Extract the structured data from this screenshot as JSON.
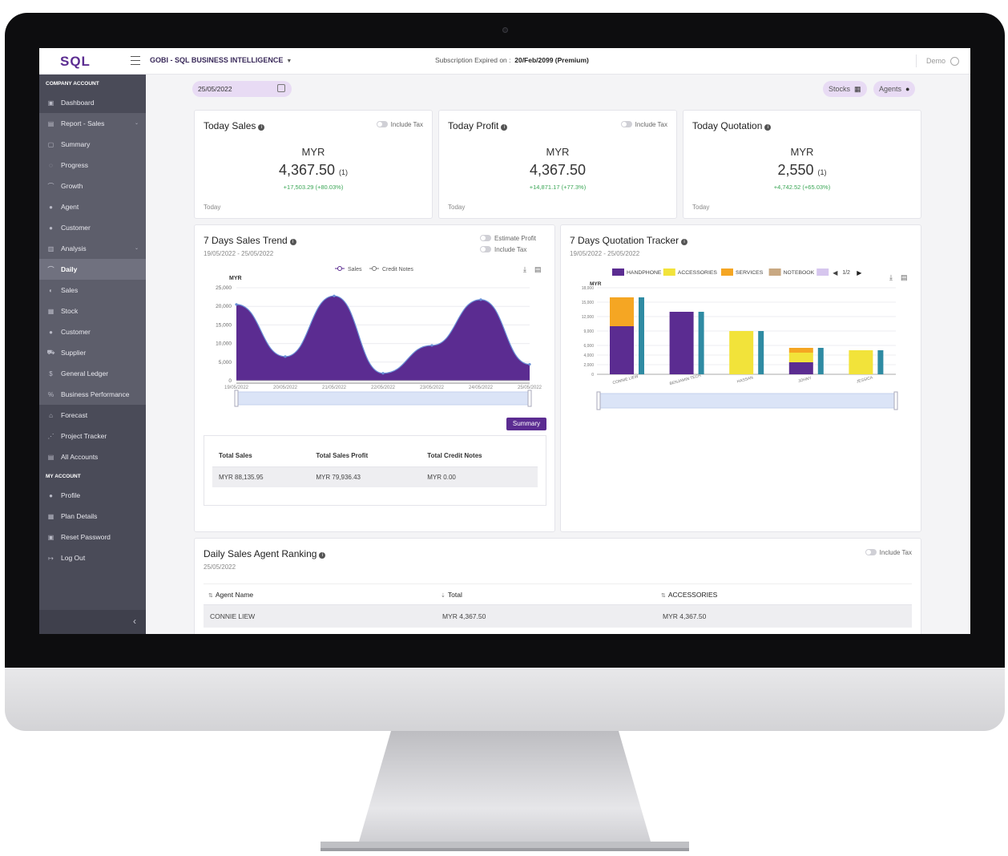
{
  "header": {
    "logo": "SQL",
    "app_name": "GOBI - SQL BUSINESS INTELLIGENCE",
    "subscription_label": "Subscription Expired on :",
    "subscription_value": "20/Feb/2099 (Premium)",
    "user": "Demo"
  },
  "sidebar": {
    "company_section": "COMPANY ACCOUNT",
    "company_items": [
      {
        "label": "Dashboard",
        "icon": "dashboard-icon"
      },
      {
        "label": "Report - Sales",
        "icon": "report-icon"
      },
      {
        "label": "Summary",
        "icon": "summary-icon"
      },
      {
        "label": "Progress",
        "icon": "progress-icon"
      },
      {
        "label": "Growth",
        "icon": "growth-icon"
      },
      {
        "label": "Agent",
        "icon": "agent-icon"
      },
      {
        "label": "Customer",
        "icon": "customer-icon"
      },
      {
        "label": "Analysis",
        "icon": "analysis-icon"
      },
      {
        "label": "Daily",
        "icon": "daily-icon"
      },
      {
        "label": "Sales",
        "icon": "sales-icon"
      },
      {
        "label": "Stock",
        "icon": "stock-icon"
      },
      {
        "label": "Customer",
        "icon": "customer-icon"
      },
      {
        "label": "Supplier",
        "icon": "supplier-icon"
      },
      {
        "label": "General Ledger",
        "icon": "ledger-icon"
      },
      {
        "label": "Business Performance",
        "icon": "performance-icon"
      },
      {
        "label": "Forecast",
        "icon": "forecast-icon"
      },
      {
        "label": "Project Tracker",
        "icon": "project-icon"
      },
      {
        "label": "All Accounts",
        "icon": "accounts-icon"
      }
    ],
    "my_section": "MY ACCOUNT",
    "my_items": [
      {
        "label": "Profile",
        "icon": "profile-icon"
      },
      {
        "label": "Plan Details",
        "icon": "plan-icon"
      },
      {
        "label": "Reset Password",
        "icon": "lock-icon"
      },
      {
        "label": "Log Out",
        "icon": "logout-icon"
      }
    ],
    "collapse": "‹"
  },
  "toolbar": {
    "date": "25/05/2022",
    "stocks": "Stocks",
    "agents": "Agents"
  },
  "kpis": [
    {
      "title": "Today Sales",
      "toggle": "Include Tax",
      "currency": "MYR",
      "value": "4,367.50",
      "count": "(1)",
      "delta": "+17,503.29 (+80.03%)",
      "foot": "Today"
    },
    {
      "title": "Today Profit",
      "toggle": "Include Tax",
      "currency": "MYR",
      "value": "4,367.50",
      "count": "",
      "delta": "+14,871.17 (+77.3%)",
      "foot": "Today"
    },
    {
      "title": "Today Quotation",
      "toggle": "",
      "currency": "MYR",
      "value": "2,550",
      "count": "(1)",
      "delta": "+4,742.52 (+65.03%)",
      "foot": "Today"
    }
  ],
  "sales_trend": {
    "title": "7 Days Sales Trend",
    "range": "19/05/2022 - 25/05/2022",
    "toggle1": "Estimate Profit",
    "toggle2": "Include Tax",
    "summary_button": "Summary",
    "summary_headers": [
      "Total Sales",
      "Total Sales Profit",
      "Total Credit Notes"
    ],
    "summary_values": [
      "MYR 88,135.95",
      "MYR 79,936.43",
      "MYR 0.00"
    ]
  },
  "quotation_tracker": {
    "title": "7 Days Quotation Tracker",
    "range": "19/05/2022 - 25/05/2022",
    "pager": "1/2"
  },
  "chart_data": [
    {
      "type": "area",
      "ylabel": "MYR",
      "categories": [
        "19/05/2022",
        "20/05/2022",
        "21/05/2022",
        "22/05/2022",
        "23/05/2022",
        "24/05/2022",
        "25/05/2022"
      ],
      "series": [
        {
          "name": "Sales",
          "values": [
            20500,
            6500,
            22800,
            2000,
            9500,
            21800,
            4400
          ]
        },
        {
          "name": "Credit Notes",
          "values": [
            0,
            0,
            0,
            0,
            0,
            0,
            0
          ]
        }
      ],
      "ylim": [
        0,
        25000
      ],
      "yticks": [
        0,
        5000,
        10000,
        15000,
        20000,
        25000
      ],
      "color": "#5b2c91",
      "legend": "top"
    },
    {
      "type": "bar",
      "ylabel": "MYR",
      "categories": [
        "CONNIE LIEW",
        "BENJAMIN TECH",
        "HASSAN",
        "JOHNY",
        "JESSICA"
      ],
      "series": [
        {
          "name": "HANDPHONE",
          "color": "#5b2c91",
          "values": [
            10000,
            13000,
            0,
            2500,
            0
          ]
        },
        {
          "name": "ACCESSORIES",
          "color": "#f2e33a",
          "values": [
            0,
            0,
            9000,
            2000,
            5000
          ]
        },
        {
          "name": "SERVICES",
          "color": "#f5a623",
          "values": [
            6000,
            0,
            0,
            1000,
            0
          ]
        },
        {
          "name": "NOTEBOOK",
          "color": "#c8a882",
          "values": [
            0,
            0,
            0,
            0,
            0
          ]
        },
        {
          "name": "",
          "color": "#d6c6ee",
          "values": [
            0,
            0,
            0,
            0,
            0
          ]
        }
      ],
      "totals": [
        16000,
        13000,
        9000,
        5500,
        5000
      ],
      "total_color": "#2f8ba3",
      "ylim": [
        0,
        18000
      ],
      "yticks": [
        "0",
        "2,000",
        "4,000",
        "6,000",
        "9,000",
        "12,000",
        "15,000",
        "18,000"
      ],
      "legend": "top"
    }
  ],
  "ranking": {
    "title": "Daily Sales Agent Ranking",
    "date": "25/05/2022",
    "toggle": "Include Tax",
    "headers": [
      "Agent Name",
      "Total",
      "ACCESSORIES"
    ],
    "rows": [
      [
        "CONNIE LIEW",
        "MYR 4,367.50",
        "MYR 4,367.50"
      ]
    ]
  }
}
